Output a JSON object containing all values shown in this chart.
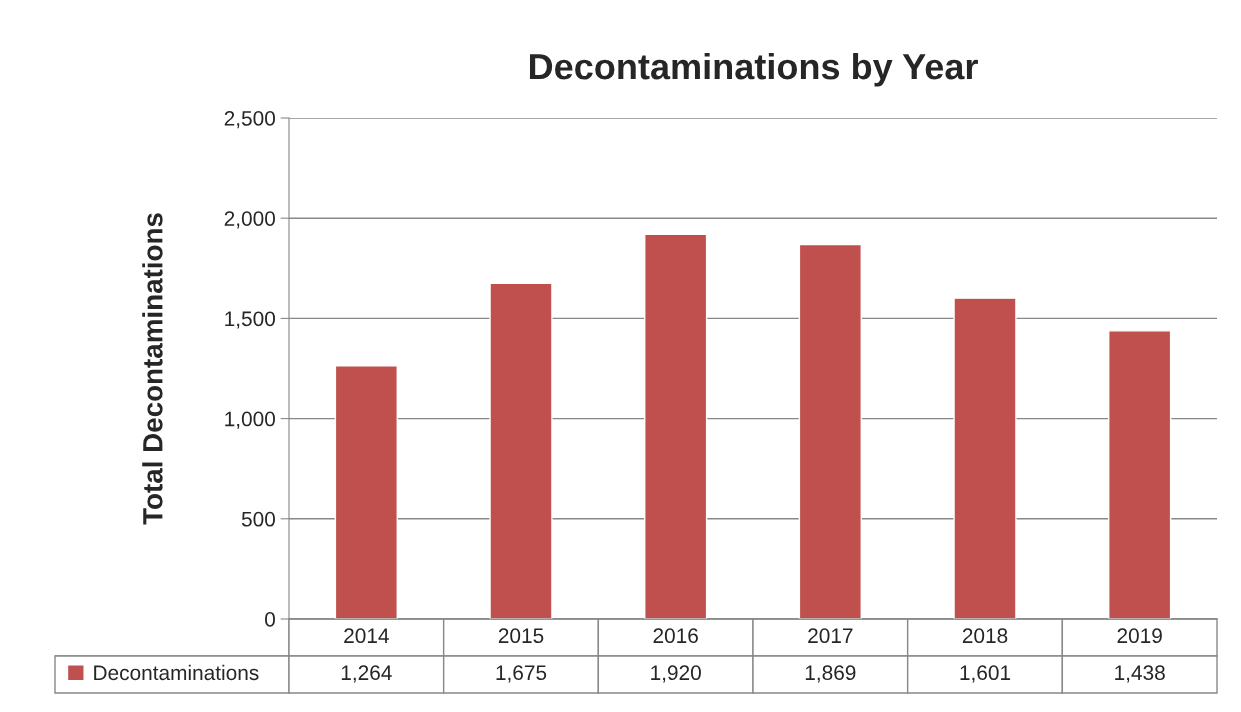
{
  "chart_data": {
    "type": "bar",
    "title": "Decontaminations by Year",
    "ylabel": "Total Decontaminations",
    "categories": [
      "2014",
      "2015",
      "2016",
      "2017",
      "2018",
      "2019"
    ],
    "series": [
      {
        "name": "Decontaminations",
        "color": "#c0504d",
        "values": [
          1264,
          1675,
          1920,
          1869,
          1601,
          1438
        ],
        "value_labels": [
          "1,264",
          "1,675",
          "1,920",
          "1,869",
          "1,601",
          "1,438"
        ]
      }
    ],
    "ylim": [
      0,
      2500
    ],
    "yticks": [
      0,
      500,
      {
        "value": 1000,
        "label": "1,000"
      },
      {
        "value": 1500,
        "label": "1,500"
      },
      {
        "value": 2000,
        "label": "2,000"
      },
      {
        "value": 2500,
        "label": "2,500"
      }
    ],
    "grid": "y",
    "legend": "bottom"
  }
}
